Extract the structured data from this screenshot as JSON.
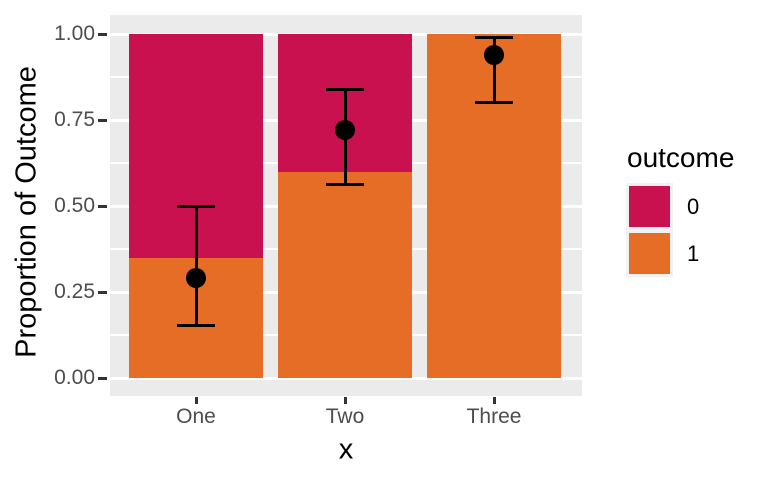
{
  "chart_data": {
    "type": "bar",
    "subtype": "stacked-proportion-bars-with-point-estimates-and-ci",
    "title": "",
    "xlabel": "x",
    "ylabel": "Proportion of Outcome",
    "categories": [
      "One",
      "Two",
      "Three"
    ],
    "series": [
      {
        "name": "0",
        "color": "#CA1150",
        "values": [
          0.65,
          0.4,
          0.0
        ]
      },
      {
        "name": "1",
        "color": "#E66D26",
        "values": [
          0.35,
          0.6,
          1.0
        ]
      }
    ],
    "points": {
      "description": "black point estimates with error bars",
      "estimates": [
        0.29,
        0.72,
        0.94
      ],
      "ci_low": [
        0.15,
        0.56,
        0.8
      ],
      "ci_high": [
        0.5,
        0.84,
        0.99
      ],
      "color": "#000000"
    },
    "ylim": [
      0,
      1
    ],
    "yticks": {
      "values": [
        0,
        0.25,
        0.5,
        0.75,
        1
      ],
      "labels": [
        "0.00",
        "0.25",
        "0.50",
        "0.75",
        "1.00"
      ]
    },
    "minor_gridlines": [
      0.125,
      0.375,
      0.625,
      0.875
    ],
    "grid": "on",
    "legend": {
      "title": "outcome",
      "position": "right",
      "entries": [
        {
          "label": "0",
          "color": "#CA1150"
        },
        {
          "label": "1",
          "color": "#E66D26"
        }
      ]
    },
    "style": {
      "panel_bg": "#EBEBEB",
      "grid_color": "#FFFFFF",
      "tick_label_color": "#4D4D4D",
      "tick_mark_color": "#333333",
      "axis_title_color": "#000000",
      "legend_key_bg": "#F2F2F2",
      "background": "#FFFFFF"
    }
  }
}
